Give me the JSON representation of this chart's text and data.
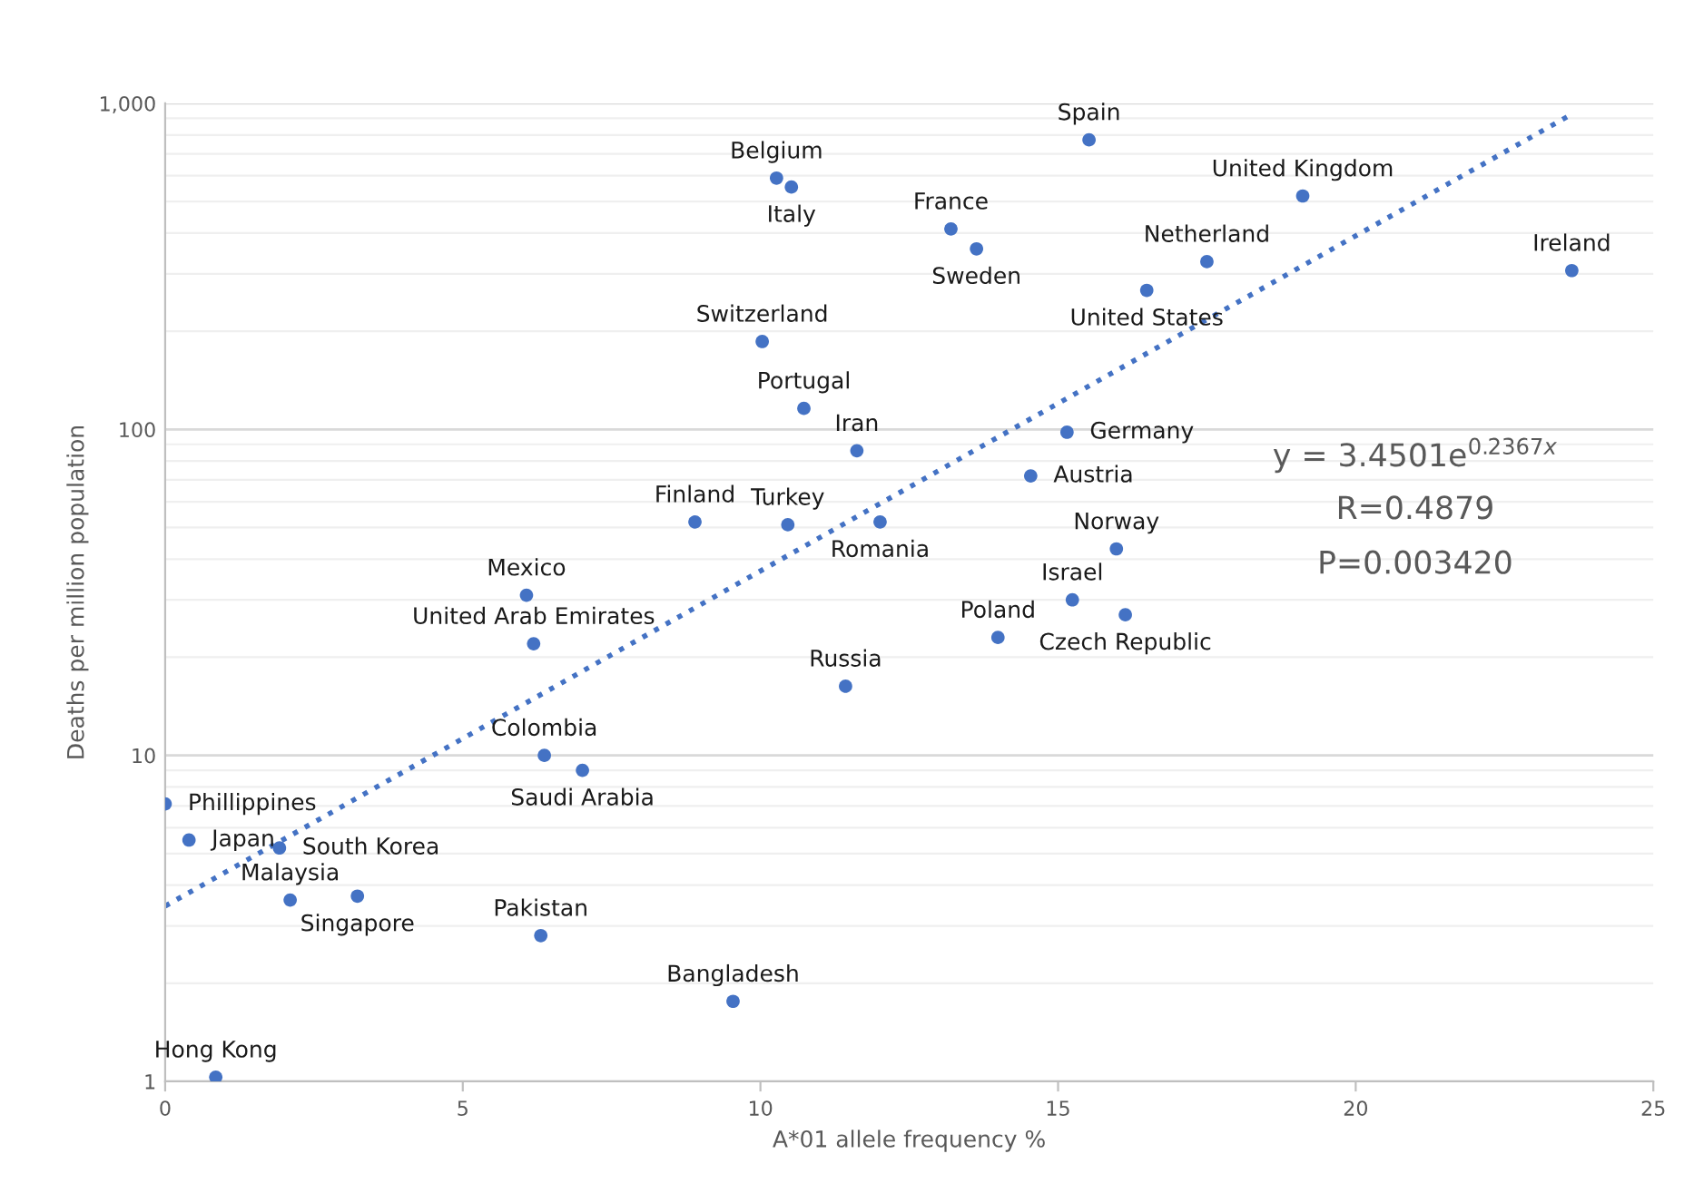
{
  "chart_data": {
    "type": "scatter",
    "xlabel": "A*01 allele frequency %",
    "ylabel": "Deaths per million population",
    "xlim": [
      0,
      25
    ],
    "xticks": [
      0,
      5,
      10,
      15,
      20,
      25
    ],
    "ylim": [
      1,
      1000
    ],
    "yticks": [
      1,
      10,
      100,
      {
        "value": 1000,
        "label": "1,000"
      }
    ],
    "log": "y",
    "grid": "y",
    "series": [
      {
        "marker": "circle",
        "color": "#4472c4",
        "x": [
          15.52,
          10.27,
          10.52,
          13.2,
          13.63,
          19.11,
          17.5,
          23.63,
          16.49,
          10.03,
          10.73,
          11.62,
          15.15,
          14.54,
          8.9,
          10.46,
          12.01,
          15.98,
          6.07,
          15.24,
          16.13,
          13.99,
          6.19,
          11.43,
          6.37,
          7.01,
          0,
          0.4,
          1.92,
          2.1,
          3.23,
          6.31,
          9.54,
          0.85
        ],
        "values": [
          773,
          590,
          554,
          412,
          358,
          520,
          327,
          307,
          267,
          186,
          116,
          86,
          98,
          72,
          52,
          51,
          52,
          43,
          31,
          30,
          27,
          23,
          22,
          16.3,
          10,
          9,
          7.1,
          5.5,
          5.2,
          3.6,
          3.7,
          2.8,
          1.76,
          1.03
        ]
      },
      {
        "type": "line",
        "color": "#4472c4",
        "line_style": "dotted",
        "x": [
          0,
          23.6
        ],
        "values": [
          3.45,
          920
        ]
      }
    ],
    "annotations": [
      {
        "text": "Spain",
        "x": 15.52,
        "y": 773
      },
      {
        "text": "Belgium",
        "x": 10.27,
        "y": 590
      },
      {
        "text": "Italy",
        "x": 10.52,
        "y": 554
      },
      {
        "text": "France",
        "x": 13.2,
        "y": 412
      },
      {
        "text": "Sweden",
        "x": 13.63,
        "y": 358
      },
      {
        "text": "United Kingdom",
        "x": 19.11,
        "y": 520
      },
      {
        "text": "Netherland",
        "x": 17.5,
        "y": 327
      },
      {
        "text": "Ireland",
        "x": 23.63,
        "y": 307
      },
      {
        "text": "United States",
        "x": 16.49,
        "y": 267
      },
      {
        "text": "Switzerland",
        "x": 10.03,
        "y": 186
      },
      {
        "text": "Portugal",
        "x": 10.73,
        "y": 116
      },
      {
        "text": "Iran",
        "x": 11.62,
        "y": 86
      },
      {
        "text": "Germany",
        "x": 15.15,
        "y": 98
      },
      {
        "text": "Austria",
        "x": 14.54,
        "y": 72
      },
      {
        "text": "Finland",
        "x": 8.9,
        "y": 52
      },
      {
        "text": "Turkey",
        "x": 10.46,
        "y": 51
      },
      {
        "text": "Romania",
        "x": 12.01,
        "y": 52
      },
      {
        "text": "Norway",
        "x": 15.98,
        "y": 43
      },
      {
        "text": "Mexico",
        "x": 6.07,
        "y": 31
      },
      {
        "text": "Israel",
        "x": 15.24,
        "y": 30
      },
      {
        "text": "Czech Republic",
        "x": 16.13,
        "y": 27
      },
      {
        "text": "Poland",
        "x": 13.99,
        "y": 23
      },
      {
        "text": "United Arab Emirates",
        "x": 6.19,
        "y": 22
      },
      {
        "text": "Russia",
        "x": 11.43,
        "y": 16.3
      },
      {
        "text": "Colombia",
        "x": 6.37,
        "y": 10
      },
      {
        "text": "Saudi Arabia",
        "x": 7.01,
        "y": 9
      },
      {
        "text": "Phillippines",
        "x": 0,
        "y": 7.1
      },
      {
        "text": "Japan",
        "x": 0.4,
        "y": 5.5
      },
      {
        "text": "South Korea",
        "x": 1.92,
        "y": 5.2
      },
      {
        "text": "Malaysia",
        "x": 2.1,
        "y": 3.6
      },
      {
        "text": "Singapore",
        "x": 3.23,
        "y": 3.7
      },
      {
        "text": "Pakistan",
        "x": 6.31,
        "y": 2.8
      },
      {
        "text": "Bangladesh",
        "x": 9.54,
        "y": 1.76
      },
      {
        "text": "Hong Kong",
        "x": 0.85,
        "y": 1.03
      },
      "y = 3.4501e$^{0.2367x}$",
      "R=0.4879",
      "P=0.003420"
    ]
  }
}
